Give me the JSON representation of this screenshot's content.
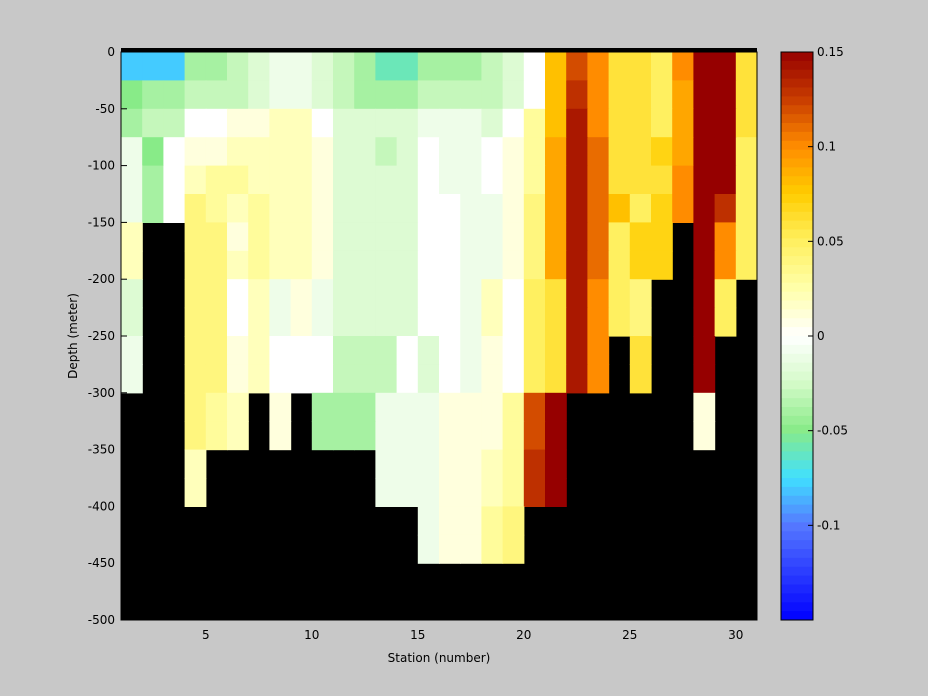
{
  "chart_data": {
    "type": "heatmap",
    "title": "",
    "xlabel": "Station (number)",
    "ylabel": "Depth (meter)",
    "xlim": [
      1,
      31
    ],
    "ylim": [
      -500,
      0
    ],
    "x_ticks": [
      5,
      10,
      15,
      20,
      25,
      30
    ],
    "y_ticks": [
      0,
      -50,
      -100,
      -150,
      -200,
      -250,
      -300,
      -350,
      -400,
      -450,
      -500
    ],
    "colorbar": {
      "range": [
        -0.15,
        0.15
      ],
      "ticks": [
        0.15,
        0.1,
        0.05,
        0,
        -0.05,
        -0.1
      ],
      "colormap": "blue-cyan-green-white-yellow-orange-darkred"
    },
    "missing_color": "#000000",
    "grid": false,
    "stations": [
      1,
      2,
      3,
      4,
      5,
      6,
      7,
      8,
      9,
      10,
      11,
      12,
      13,
      14,
      15,
      16,
      17,
      18,
      19,
      20,
      21,
      22,
      23,
      24,
      25,
      26,
      27,
      28,
      29,
      30
    ],
    "depth_bins": [
      -5,
      -25,
      -50,
      -75,
      -100,
      -125,
      -150,
      -175,
      -200,
      -225,
      -250,
      -275,
      -300,
      -325,
      -350,
      -375,
      -400,
      -425,
      -450,
      -475
    ],
    "values": [
      [
        -0.08,
        -0.08,
        -0.08,
        -0.04,
        -0.04,
        -0.03,
        -0.02,
        -0.01,
        -0.01,
        -0.02,
        -0.03,
        -0.04,
        -0.06,
        -0.06,
        -0.04,
        -0.04,
        -0.04,
        -0.03,
        -0.02,
        0.0,
        0.08,
        0.12,
        0.1,
        0.06,
        0.06,
        0.05,
        0.1,
        0.15,
        0.15,
        0.06
      ],
      [
        -0.05,
        -0.04,
        -0.04,
        -0.03,
        -0.03,
        -0.03,
        -0.02,
        -0.01,
        -0.01,
        -0.02,
        -0.03,
        -0.04,
        -0.04,
        -0.04,
        -0.03,
        -0.03,
        -0.03,
        -0.03,
        -0.02,
        0.0,
        0.08,
        0.13,
        0.1,
        0.06,
        0.06,
        0.05,
        0.09,
        0.15,
        0.15,
        0.06
      ],
      [
        -0.04,
        -0.03,
        -0.03,
        0.0,
        0.0,
        0.01,
        0.01,
        0.02,
        0.02,
        0.0,
        -0.02,
        -0.02,
        -0.02,
        -0.02,
        -0.01,
        -0.01,
        -0.01,
        -0.02,
        0.0,
        0.03,
        0.08,
        0.14,
        0.1,
        0.06,
        0.06,
        0.05,
        0.09,
        0.15,
        0.15,
        0.06
      ],
      [
        -0.01,
        -0.05,
        0.0,
        0.01,
        0.01,
        0.02,
        0.02,
        0.02,
        0.02,
        0.01,
        -0.02,
        -0.02,
        -0.03,
        -0.02,
        0.0,
        -0.01,
        -0.01,
        0.0,
        0.01,
        0.03,
        0.09,
        0.14,
        0.11,
        0.06,
        0.06,
        0.07,
        0.09,
        0.15,
        0.15,
        0.05
      ],
      [
        -0.01,
        -0.04,
        0.0,
        0.02,
        0.03,
        0.03,
        0.02,
        0.02,
        0.02,
        0.01,
        -0.02,
        -0.02,
        -0.02,
        -0.02,
        0.0,
        -0.01,
        -0.01,
        0.0,
        0.01,
        0.03,
        0.09,
        0.14,
        0.11,
        0.06,
        0.06,
        0.06,
        0.1,
        0.15,
        0.15,
        0.05
      ],
      [
        -0.01,
        -0.04,
        0.0,
        0.04,
        0.03,
        0.02,
        0.03,
        0.02,
        0.02,
        0.01,
        -0.02,
        -0.02,
        -0.02,
        -0.02,
        0.0,
        0.0,
        -0.01,
        -0.01,
        0.01,
        0.04,
        0.09,
        0.14,
        0.11,
        0.08,
        0.05,
        0.07,
        0.1,
        0.15,
        0.13,
        0.05
      ],
      [
        0.02,
        null,
        null,
        0.04,
        0.04,
        0.01,
        0.03,
        0.02,
        0.02,
        0.01,
        -0.02,
        -0.02,
        -0.02,
        -0.02,
        0.0,
        0.0,
        -0.01,
        -0.01,
        0.01,
        0.04,
        0.09,
        0.14,
        0.11,
        0.05,
        0.07,
        0.07,
        null,
        0.15,
        0.1,
        0.05
      ],
      [
        0.02,
        null,
        null,
        0.04,
        0.04,
        0.02,
        0.03,
        0.02,
        0.02,
        0.01,
        -0.02,
        -0.02,
        -0.02,
        -0.02,
        0.0,
        0.0,
        -0.01,
        -0.01,
        0.01,
        0.04,
        0.09,
        0.14,
        0.11,
        0.05,
        0.07,
        0.07,
        null,
        0.15,
        0.1,
        0.05
      ],
      [
        -0.02,
        null,
        null,
        0.04,
        0.04,
        0.0,
        0.02,
        -0.01,
        0.01,
        -0.01,
        -0.02,
        -0.02,
        -0.02,
        -0.02,
        0.0,
        0.0,
        -0.01,
        0.02,
        0.0,
        0.05,
        0.06,
        0.14,
        0.1,
        0.05,
        0.04,
        null,
        null,
        0.15,
        0.05,
        null
      ],
      [
        -0.02,
        null,
        null,
        0.04,
        0.04,
        0.0,
        0.02,
        -0.01,
        0.01,
        -0.01,
        -0.02,
        -0.02,
        -0.02,
        -0.02,
        0.0,
        0.0,
        -0.01,
        0.02,
        0.0,
        0.05,
        0.06,
        0.14,
        0.1,
        0.05,
        0.04,
        null,
        null,
        0.15,
        0.05,
        null
      ],
      [
        -0.01,
        null,
        null,
        0.04,
        0.04,
        0.01,
        0.02,
        0.0,
        0.0,
        0.0,
        -0.03,
        -0.03,
        -0.03,
        0.0,
        -0.02,
        0.0,
        -0.01,
        0.01,
        0.0,
        0.05,
        0.06,
        0.14,
        0.1,
        null,
        0.06,
        null,
        null,
        0.15,
        null,
        null
      ],
      [
        -0.01,
        null,
        null,
        0.04,
        0.04,
        0.01,
        0.02,
        0.0,
        0.0,
        0.0,
        -0.03,
        -0.03,
        -0.03,
        0.0,
        -0.02,
        0.0,
        -0.01,
        0.01,
        0.0,
        0.05,
        0.06,
        0.14,
        0.1,
        null,
        0.06,
        null,
        null,
        0.15,
        null,
        null
      ],
      [
        null,
        null,
        null,
        0.04,
        0.03,
        0.02,
        null,
        0.01,
        null,
        -0.04,
        -0.04,
        -0.04,
        -0.01,
        -0.01,
        -0.01,
        0.01,
        0.01,
        0.01,
        0.03,
        0.12,
        0.15,
        null,
        null,
        null,
        null,
        null,
        null,
        0.01,
        null,
        null
      ],
      [
        null,
        null,
        null,
        0.04,
        0.03,
        0.02,
        null,
        0.01,
        null,
        -0.04,
        -0.04,
        -0.04,
        -0.01,
        -0.01,
        -0.01,
        0.01,
        0.01,
        0.01,
        0.03,
        0.12,
        0.15,
        null,
        null,
        null,
        null,
        null,
        null,
        0.01,
        null,
        null
      ],
      [
        null,
        null,
        null,
        0.02,
        null,
        null,
        null,
        null,
        null,
        null,
        null,
        null,
        -0.01,
        -0.01,
        -0.01,
        0.01,
        0.01,
        0.02,
        0.03,
        0.13,
        0.15,
        null,
        null,
        null,
        null,
        null,
        null,
        null,
        null,
        null
      ],
      [
        null,
        null,
        null,
        0.02,
        null,
        null,
        null,
        null,
        null,
        null,
        null,
        null,
        -0.01,
        -0.01,
        -0.01,
        0.01,
        0.01,
        0.02,
        0.03,
        0.13,
        0.15,
        null,
        null,
        null,
        null,
        null,
        null,
        null,
        null,
        null
      ],
      [
        null,
        null,
        null,
        null,
        null,
        null,
        null,
        null,
        null,
        null,
        null,
        null,
        null,
        null,
        -0.01,
        0.01,
        0.01,
        0.03,
        0.04,
        null,
        null,
        null,
        null,
        null,
        null,
        null,
        null,
        null,
        null,
        null
      ],
      [
        null,
        null,
        null,
        null,
        null,
        null,
        null,
        null,
        null,
        null,
        null,
        null,
        null,
        null,
        -0.01,
        0.01,
        0.01,
        0.03,
        0.04,
        null,
        null,
        null,
        null,
        null,
        null,
        null,
        null,
        null,
        null,
        null
      ],
      [
        null,
        null,
        null,
        null,
        null,
        null,
        null,
        null,
        null,
        null,
        null,
        null,
        null,
        null,
        null,
        null,
        null,
        null,
        null,
        null,
        null,
        null,
        null,
        null,
        null,
        null,
        null,
        null,
        null,
        null
      ],
      [
        null,
        null,
        null,
        null,
        null,
        null,
        null,
        null,
        null,
        null,
        null,
        null,
        null,
        null,
        null,
        null,
        null,
        null,
        null,
        null,
        null,
        null,
        null,
        null,
        null,
        null,
        null,
        null,
        null,
        null
      ]
    ]
  }
}
